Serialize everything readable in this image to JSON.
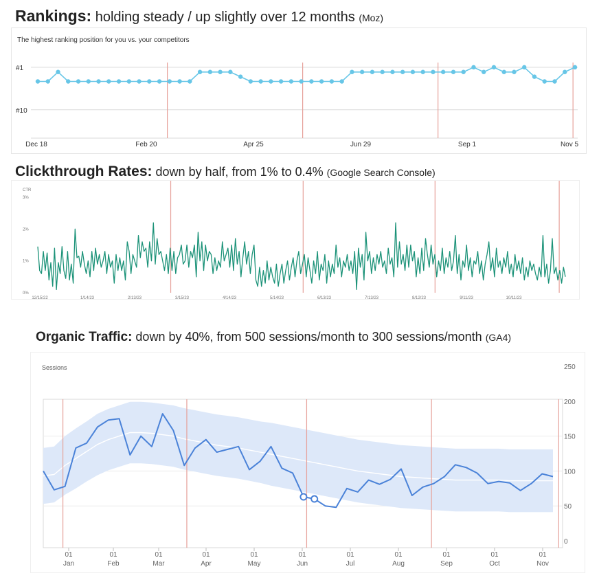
{
  "headings": {
    "rankings": {
      "strong": "Rankings:",
      "text": " holding steady / up slightly over 12 months ",
      "source": "(Moz)"
    },
    "ctr": {
      "strong": "Clickthrough Rates:",
      "text": " down by half, from 1% to 0.4% ",
      "source": "(Google Search Console)"
    },
    "traffic": {
      "strong": "Organic Traffic:",
      "text": " down by 40%, from 500 sessions/month to 300 sessions/month ",
      "source": "(GA4)"
    }
  },
  "colors": {
    "rank_line": "#67c6e7",
    "ctr_line": "#1b9278",
    "sessions_line": "#4a82d8",
    "band": "#dde8f9",
    "marker": "#e6a19a",
    "grid": "#d9d9d9"
  },
  "chart_data": [
    {
      "type": "line",
      "name": "rankings",
      "title": "The highest ranking position for you vs. your competitors",
      "y_ticks": [
        {
          "label": "#1",
          "value": 1
        },
        {
          "label": "#10",
          "value": 10
        }
      ],
      "ylim": [
        16,
        0
      ],
      "y_inverted": true,
      "x_ticks": [
        "Dec 18",
        "Feb 20",
        "Apr 25",
        "Jun 29",
        "Sep 1",
        "Nov 5"
      ],
      "values": [
        4,
        4,
        2,
        4,
        4,
        4,
        4,
        4,
        4,
        4,
        4,
        4,
        4,
        4,
        4,
        4,
        2,
        2,
        2,
        2,
        3,
        4,
        4,
        4,
        4,
        4,
        4,
        4,
        4,
        4,
        4,
        2,
        2,
        2,
        2,
        2,
        2,
        2,
        2,
        2,
        2,
        2,
        2,
        1,
        2,
        1,
        2,
        2,
        1,
        3,
        4,
        4,
        2,
        1
      ],
      "events": [
        0.2495,
        0.497,
        0.7445,
        0.9914
      ],
      "grid": true
    },
    {
      "type": "line",
      "name": "ctr",
      "ylabel": "CTR",
      "y_ticks": [
        {
          "label": "3%",
          "value": 3
        },
        {
          "label": "2%",
          "value": 2
        },
        {
          "label": "1%",
          "value": 1
        },
        {
          "label": "0%",
          "value": 0
        }
      ],
      "ylim": [
        0,
        3
      ],
      "x_ticks": [
        "12/15/22",
        "1/14/23",
        "2/13/23",
        "3/15/23",
        "4/14/23",
        "5/14/23",
        "6/13/23",
        "7/13/23",
        "8/12/23",
        "9/11/23",
        "10/11/23"
      ],
      "values": [
        1.45,
        0.7,
        0.6,
        1.3,
        0.7,
        1.25,
        0.4,
        0.95,
        0.2,
        1.4,
        0.1,
        0.95,
        0.6,
        1.45,
        0.7,
        0.45,
        1.3,
        0.4,
        0.9,
        0.3,
        2.0,
        1.1,
        1.15,
        0.8,
        1.3,
        0.9,
        0.6,
        1.0,
        0.5,
        1.3,
        0.7,
        1.4,
        0.9,
        1.2,
        0.8,
        1.0,
        1.3,
        0.6,
        1.2,
        0.8,
        1.0,
        0.3,
        1.2,
        0.7,
        1.1,
        0.7,
        1.0,
        0.4,
        1.6,
        1.3,
        0.6,
        1.2,
        1.0,
        0.8,
        1.8,
        1.1,
        1.6,
        1.3,
        1.4,
        0.8,
        1.6,
        1.0,
        2.2,
        0.9,
        1.7,
        1.2,
        1.3,
        1.0,
        0.7,
        1.2,
        0.6,
        1.4,
        0.7,
        1.3,
        0.6,
        1.1,
        1.2,
        1.5,
        0.9,
        1.0,
        1.5,
        0.8,
        1.3,
        1.1,
        1.5,
        0.5,
        1.9,
        1.0,
        1.6,
        0.7,
        1.5,
        1.0,
        1.3,
        1.2,
        0.6,
        1.1,
        0.7,
        1.0,
        0.8,
        1.6,
        1.0,
        1.2,
        1.4,
        0.8,
        1.5,
        0.7,
        1.7,
        0.9,
        1.3,
        0.5,
        1.1,
        1.6,
        0.9,
        1.3,
        0.6,
        1.2,
        1.5,
        0.4,
        0.2,
        0.8,
        0.2,
        0.7,
        0.3,
        1.0,
        0.4,
        0.8,
        0.5,
        0.3,
        0.9,
        0.2,
        0.6,
        0.9,
        0.3,
        0.7,
        1.0,
        0.4,
        0.8,
        1.1,
        0.5,
        1.0,
        1.3,
        0.6,
        0.9,
        1.2,
        0.5,
        1.1,
        0.7,
        0.3,
        1.0,
        0.6,
        1.3,
        0.4,
        0.9,
        0.7,
        1.2,
        0.3,
        1.0,
        0.5,
        0.9,
        0.6,
        1.5,
        0.8,
        1.1,
        0.5,
        1.0,
        0.8,
        1.2,
        0.7,
        1.0,
        0.6,
        1.3,
        0.1,
        1.4,
        0.8,
        1.2,
        0.4,
        1.9,
        1.0,
        1.3,
        0.6,
        1.1,
        0.7,
        1.2,
        0.9,
        1.3,
        0.8,
        1.0,
        0.6,
        1.4,
        0.9,
        1.1,
        0.5,
        2.2,
        0.8,
        1.6,
        0.9,
        1.2,
        0.7,
        1.5,
        0.8,
        1.5,
        1.0,
        1.3,
        0.5,
        1.1,
        0.6,
        1.4,
        0.7,
        1.7,
        1.2,
        0.8,
        1.5,
        0.9,
        1.2,
        0.5,
        1.0,
        0.7,
        1.4,
        0.6,
        1.1,
        0.8,
        1.3,
        0.7,
        1.0,
        1.8,
        0.6,
        1.2,
        0.4,
        1.0,
        0.8,
        1.5,
        0.7,
        1.1,
        0.5,
        1.0,
        0.9,
        1.3,
        0.6,
        1.0,
        0.4,
        0.9,
        1.2,
        1.6,
        0.7,
        1.1,
        0.5,
        1.4,
        0.8,
        1.0,
        0.6,
        1.1,
        0.8,
        1.3,
        0.6,
        0.9,
        0.5,
        1.2,
        0.7,
        1.0,
        0.6,
        1.1,
        0.4,
        0.8,
        0.5,
        1.0,
        0.7,
        0.9,
        0.6,
        0.4,
        0.8,
        0.5,
        1.8,
        0.5,
        0.9,
        0.3,
        0.7,
        1.7,
        0.6,
        0.8,
        0.4,
        0.7,
        0.3,
        0.8,
        0.5
      ],
      "events": [
        0.252,
        0.503,
        0.753,
        0.9884
      ],
      "grid": false
    },
    {
      "type": "line",
      "name": "organic-traffic",
      "ylabel": "Sessions",
      "y_ticks": [
        {
          "label": "250",
          "value": 250
        },
        {
          "label": "200",
          "value": 200
        },
        {
          "label": "150",
          "value": 150
        },
        {
          "label": "100",
          "value": 100
        },
        {
          "label": "50",
          "value": 50
        },
        {
          "label": "0",
          "value": 0
        }
      ],
      "ylim": [
        0,
        250
      ],
      "x_ticks": [
        {
          "day": "01",
          "month": "Jan"
        },
        {
          "day": "01",
          "month": "Feb"
        },
        {
          "day": "01",
          "month": "Mar"
        },
        {
          "day": "01",
          "month": "Apr"
        },
        {
          "day": "01",
          "month": "May"
        },
        {
          "day": "01",
          "month": "Jun"
        },
        {
          "day": "01",
          "month": "Jul"
        },
        {
          "day": "01",
          "month": "Aug"
        },
        {
          "day": "01",
          "month": "Sep"
        },
        {
          "day": "01",
          "month": "Oct"
        },
        {
          "day": "01",
          "month": "Nov"
        }
      ],
      "values": [
        100,
        73,
        78,
        133,
        140,
        163,
        173,
        175,
        123,
        150,
        135,
        182,
        158,
        108,
        133,
        145,
        127,
        131,
        135,
        102,
        114,
        135,
        104,
        97,
        63,
        60,
        50,
        48,
        75,
        70,
        87,
        81,
        88,
        103,
        65,
        77,
        82,
        92,
        109,
        105,
        97,
        82,
        85,
        83,
        72,
        82,
        96,
        92
      ],
      "anomalies": [
        24,
        25
      ],
      "band_center": [
        93,
        95,
        108,
        118,
        128,
        138,
        145,
        150,
        155,
        155,
        154,
        152,
        150,
        146,
        143,
        140,
        137,
        135,
        133,
        130,
        127,
        124,
        121,
        118,
        115,
        112,
        109,
        106,
        103,
        100,
        98,
        96,
        94,
        92,
        91,
        90,
        89,
        88,
        87,
        87,
        87,
        87,
        87,
        86,
        86,
        86,
        86,
        86
      ],
      "band_half_width": [
        40,
        40,
        42,
        43,
        43,
        44,
        44,
        44,
        44,
        44,
        44,
        44,
        44,
        44,
        44,
        44,
        44,
        44,
        44,
        44,
        44,
        45,
        45,
        45,
        45,
        45,
        45,
        45,
        45,
        45,
        45,
        45,
        45,
        45,
        45,
        45,
        45,
        45,
        45,
        45,
        45,
        45,
        45,
        45,
        45,
        45,
        45,
        45
      ],
      "events": [
        0.0378,
        0.2764,
        0.5072,
        0.7475,
        0.9925
      ],
      "grid": true
    }
  ]
}
